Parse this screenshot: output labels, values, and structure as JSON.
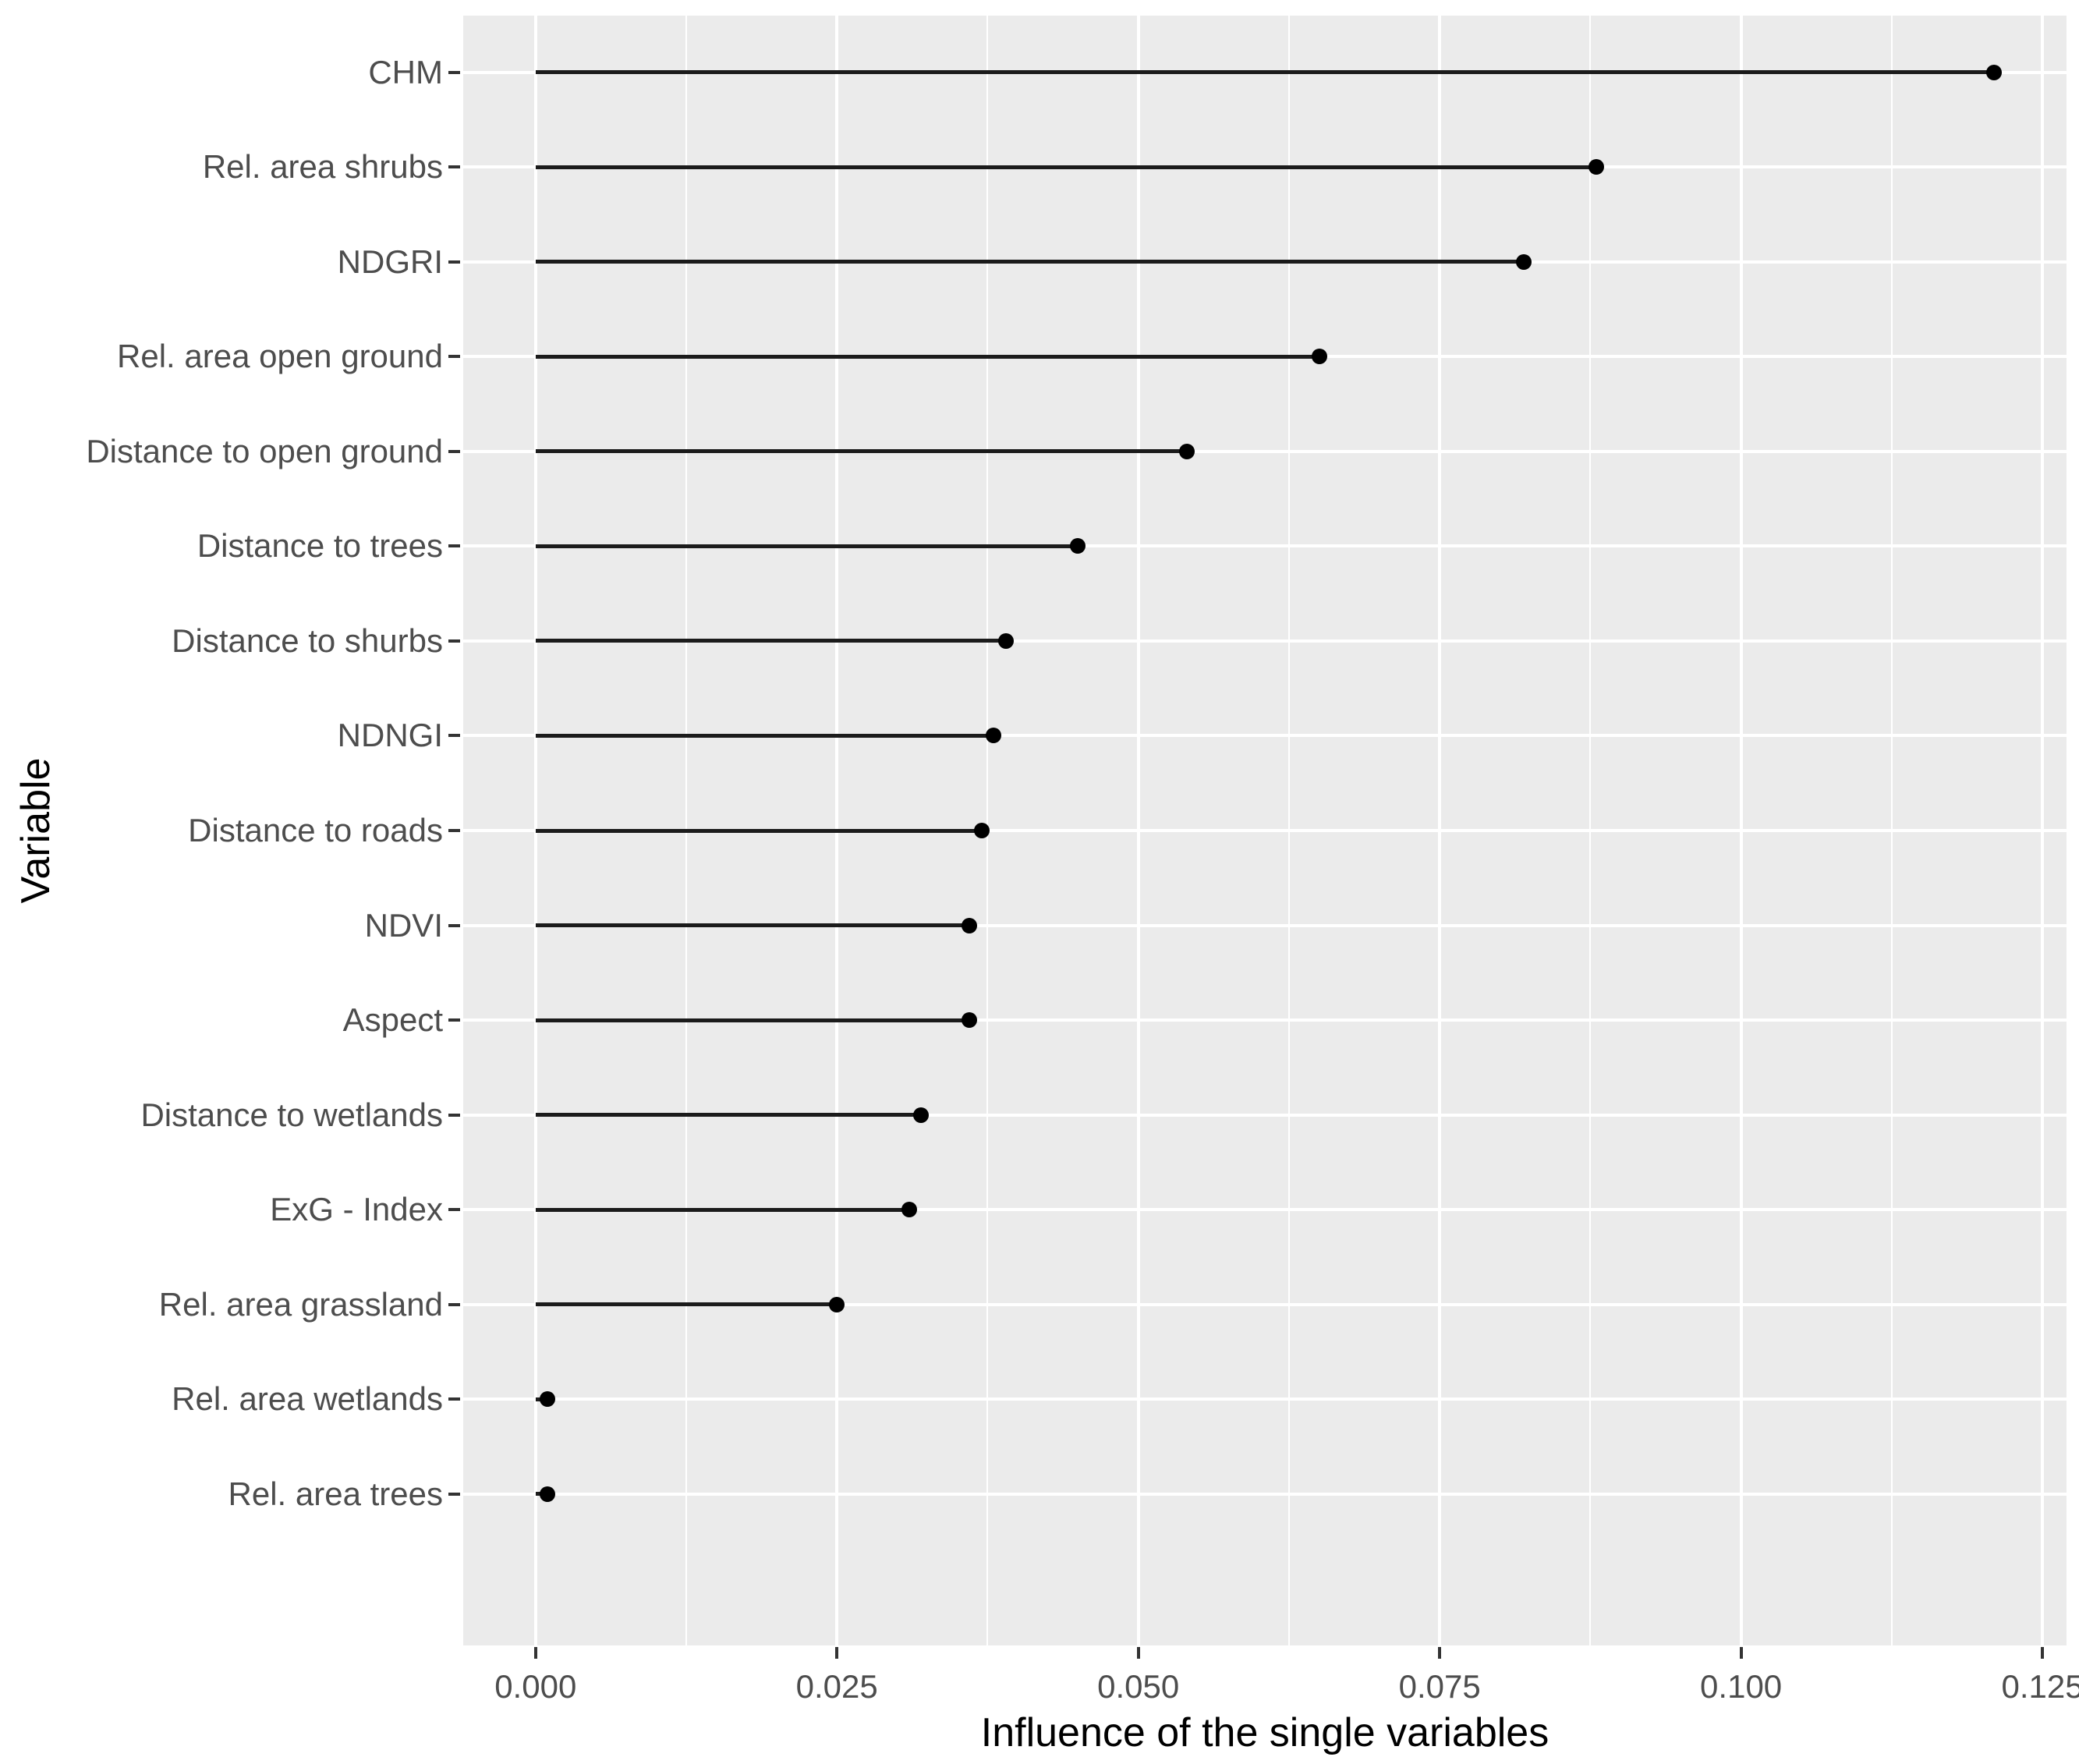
{
  "chart_data": {
    "type": "scatter",
    "variant": "lollipop-horizontal-dot-plot",
    "title": "",
    "xlabel": "Influence of the single variables",
    "ylabel": "Variable",
    "categories": [
      "CHM",
      "Rel. area shrubs",
      "NDGRI",
      "Rel. area open ground",
      "Distance to open ground",
      "Distance to trees",
      "Distance to shurbs",
      "NDNGI",
      "Distance to roads",
      "NDVI",
      "Aspect",
      "Distance to wetlands",
      "ExG - Index",
      "Rel. area grassland",
      "Rel. area wetlands",
      "Rel. area trees"
    ],
    "values": [
      0.121,
      0.088,
      0.082,
      0.065,
      0.054,
      0.045,
      0.039,
      0.038,
      0.037,
      0.036,
      0.036,
      0.032,
      0.031,
      0.025,
      0.001,
      0.001
    ],
    "stem_baseline": 0,
    "xlim": [
      -0.006,
      0.127
    ],
    "x_ticks": [
      {
        "label": "0.000",
        "value": 0.0
      },
      {
        "label": "0.025",
        "value": 0.025
      },
      {
        "label": "0.050",
        "value": 0.05
      },
      {
        "label": "0.075",
        "value": 0.075
      },
      {
        "label": "0.100",
        "value": 0.1
      },
      {
        "label": "0.125",
        "value": 0.125
      }
    ],
    "grid": "on",
    "legend": "none",
    "colors": {
      "panel_background": "#ebebeb",
      "gridline": "#ffffff",
      "point": "#000000",
      "stem": "#1b1b1b",
      "tick_mark": "#333333",
      "tick_label": "#4d4d4d",
      "axis_title": "#000000",
      "figure_background": "#ffffff"
    }
  }
}
